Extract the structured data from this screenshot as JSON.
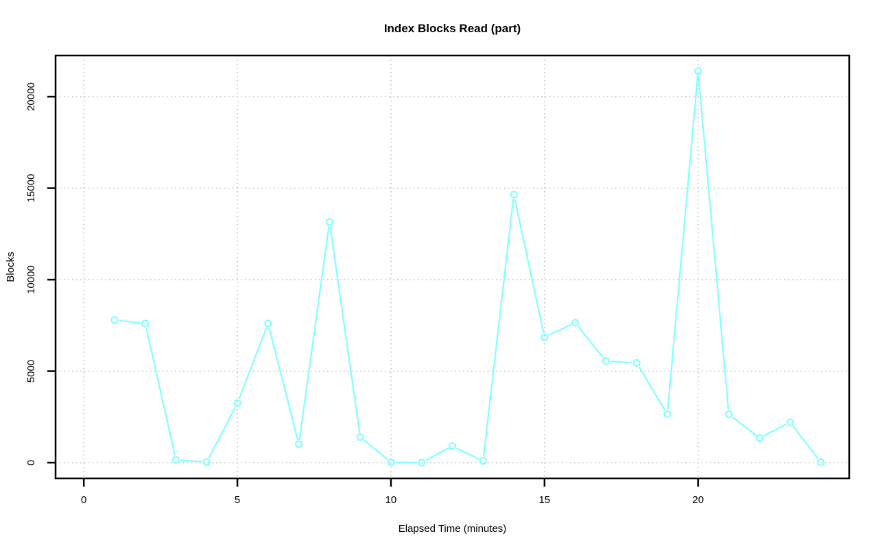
{
  "chart_data": {
    "type": "line",
    "title": "Index Blocks Read (part)",
    "xlabel": "Elapsed Time (minutes)",
    "ylabel": "Blocks",
    "x": [
      1,
      2,
      3,
      4,
      5,
      6,
      7,
      8,
      9,
      10,
      11,
      12,
      13,
      14,
      15,
      16,
      17,
      18,
      19,
      20,
      21,
      22,
      23,
      24
    ],
    "values": [
      7800,
      7600,
      150,
      30,
      3250,
      7600,
      1000,
      13150,
      1400,
      20,
      10,
      900,
      100,
      14650,
      6850,
      7650,
      5550,
      5450,
      2650,
      21400,
      2650,
      1350,
      2200,
      20
    ],
    "x_ticks": [
      0,
      5,
      10,
      15,
      20
    ],
    "y_ticks": [
      0,
      5000,
      10000,
      15000,
      20000
    ],
    "xlim": [
      -0.92,
      24.92
    ],
    "ylim": [
      -860,
      22250
    ],
    "grid": "dotted, both axes, at tick positions",
    "legend": "none",
    "marker": "open-circle",
    "line_style": "segments-with-gap-around-markers",
    "colors": {
      "line": "#82FFFF",
      "grid": "#BDBDBD",
      "axis": "#000000",
      "text": "#000000",
      "background": "#FFFFFF"
    }
  }
}
